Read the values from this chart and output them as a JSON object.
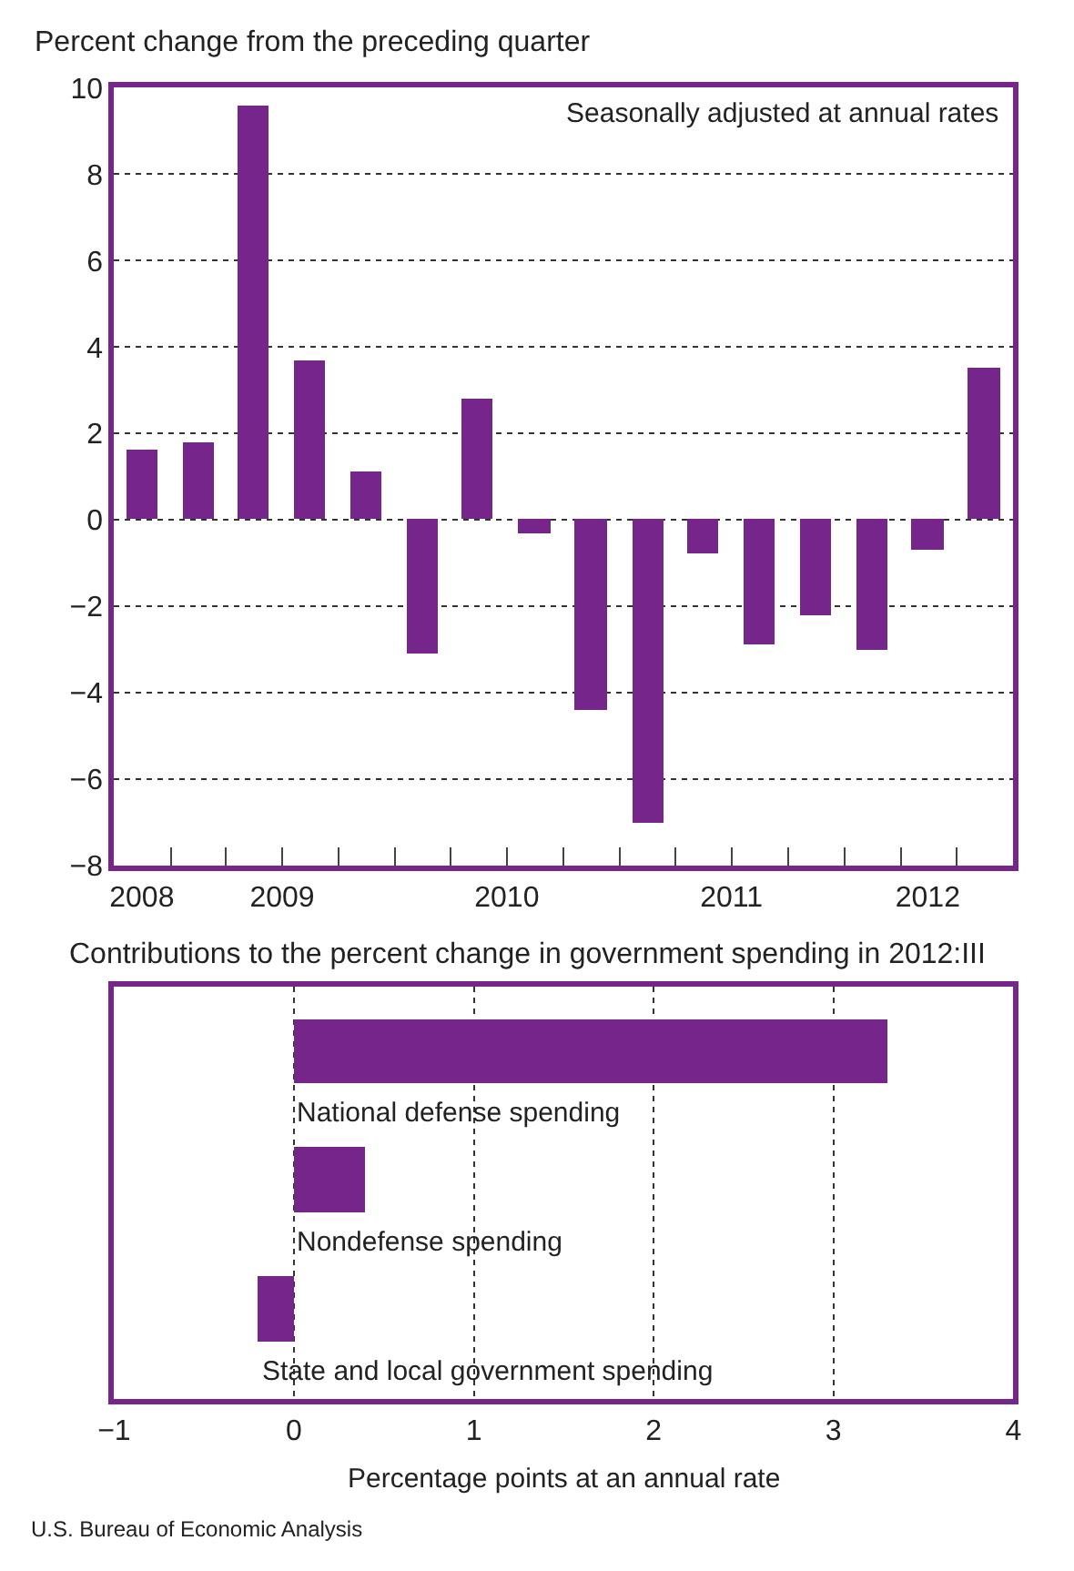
{
  "chart_data": [
    {
      "type": "bar",
      "title": "Percent change from the preceding quarter",
      "annotations": [
        "Seasonally adjusted at annual rates"
      ],
      "x": [
        "2008-11-15",
        "2009-02-15",
        "2009-05-15",
        "2009-08-15",
        "2009-11-15",
        "2010-02-15",
        "2010-05-15",
        "2010-08-15",
        "2010-11-15",
        "2011-02-15",
        "2011-05-15",
        "2011-08-15",
        "2011-11-15",
        "2012-02-15",
        "2012-05-15",
        "2012-08-15"
      ],
      "values": [
        1.6,
        1.8,
        9.6,
        3.7,
        1.1,
        -3.1,
        2.8,
        -0.3,
        -4.4,
        -7.0,
        -0.8,
        -2.9,
        -2.2,
        -3.0,
        -0.7,
        3.5
      ],
      "color": "#76258a",
      "xlim": [
        "2008-10-01",
        "2012-10-01"
      ],
      "xticks": [
        {
          "value": "2008-11-15",
          "label": "2008"
        },
        {
          "value": "2009-07-01",
          "label": "2009"
        },
        {
          "value": "2010-07-01",
          "label": "2010"
        },
        {
          "value": "2011-07-01",
          "label": "2011"
        },
        {
          "value": "2012-05-15",
          "label": "2012"
        },
        {
          "value": "2009-01-01",
          "label": null
        },
        {
          "value": "2009-04-01",
          "label": null
        },
        {
          "value": "2009-07-01",
          "label": null
        },
        {
          "value": "2009-10-01",
          "label": null
        },
        {
          "value": "2010-01-01",
          "label": null
        },
        {
          "value": "2010-04-01",
          "label": null
        },
        {
          "value": "2010-07-01",
          "label": null
        },
        {
          "value": "2010-10-01",
          "label": null
        },
        {
          "value": "2011-01-01",
          "label": null
        },
        {
          "value": "2011-04-01",
          "label": null
        },
        {
          "value": "2011-07-01",
          "label": null
        },
        {
          "value": "2011-10-01",
          "label": null
        },
        {
          "value": "2012-01-01",
          "label": null
        },
        {
          "value": "2012-04-01",
          "label": null
        },
        {
          "value": "2012-07-01",
          "label": null
        }
      ],
      "ylim": [
        -8,
        10
      ],
      "yticks": [
        -8,
        -6,
        -4,
        -2,
        0,
        2,
        4,
        6,
        8,
        10
      ],
      "grid": "y"
    },
    {
      "type": "bar",
      "orientation": "horizontal",
      "title": "Contributions to the percent change in government spending in 2012:III",
      "xlabel": "Percentage points at an annual rate",
      "annotations": [
        "U.S. Bureau of Economic Analysis"
      ],
      "categories": [
        "National defense spending",
        "Nondefense spending",
        "State and local government spending"
      ],
      "values": [
        3.3,
        0.4,
        -0.2
      ],
      "color": "#76258a",
      "xlim": [
        -1,
        4
      ],
      "xticks": [
        -1,
        0,
        1,
        2,
        3,
        4
      ],
      "grid": "x"
    }
  ]
}
